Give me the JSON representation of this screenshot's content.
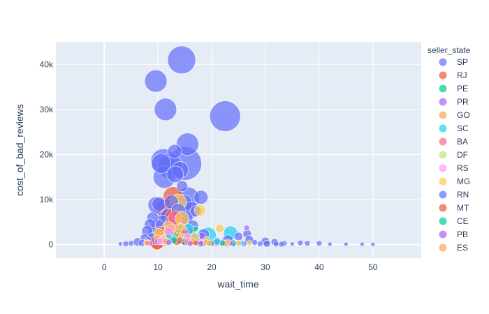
{
  "chart_data": {
    "type": "scatter",
    "xlabel": "wait_time",
    "ylabel": "cost_of_bad_reviews",
    "xlim": [
      -9,
      59
    ],
    "ylim": [
      -3000,
      45000
    ],
    "x_ticks": [
      0,
      10,
      20,
      30,
      40,
      50
    ],
    "x_tick_labels": [
      "0",
      "10",
      "20",
      "30",
      "40",
      "50"
    ],
    "y_ticks": [
      0,
      10000,
      20000,
      30000,
      40000
    ],
    "y_tick_labels": [
      "0",
      "10k",
      "20k",
      "30k",
      "40k"
    ],
    "grid": true,
    "legend_title": "seller_state",
    "legend_position": "right",
    "series": [
      {
        "name": "SP",
        "color": "#636efa",
        "points": [
          [
            14.4,
            41000,
            20
          ],
          [
            9.6,
            36300,
            16
          ],
          [
            11.4,
            30000,
            16
          ],
          [
            22.5,
            28500,
            22
          ],
          [
            15.5,
            22300,
            16
          ],
          [
            13.1,
            20700,
            10
          ],
          [
            11.0,
            18500,
            18
          ],
          [
            10.6,
            18000,
            14
          ],
          [
            12.2,
            17500,
            18
          ],
          [
            15.0,
            18000,
            24
          ],
          [
            14.1,
            16600,
            12
          ],
          [
            13.2,
            15600,
            12
          ],
          [
            11.2,
            15000,
            16
          ],
          [
            14.5,
            13000,
            8
          ],
          [
            15.6,
            10300,
            16
          ],
          [
            18.0,
            10500,
            10
          ],
          [
            10.2,
            9000,
            10
          ],
          [
            9.7,
            8800,
            12
          ],
          [
            12.5,
            9500,
            10
          ],
          [
            14.8,
            9200,
            12
          ],
          [
            11.0,
            7800,
            14
          ],
          [
            13.8,
            7600,
            10
          ],
          [
            16.2,
            7700,
            12
          ],
          [
            17.0,
            7400,
            8
          ],
          [
            9.0,
            6000,
            8
          ],
          [
            12.0,
            6200,
            12
          ],
          [
            15.2,
            6000,
            10
          ],
          [
            10.8,
            5000,
            10
          ],
          [
            14.0,
            4500,
            12
          ],
          [
            16.5,
            4200,
            8
          ],
          [
            8.5,
            4500,
            8
          ],
          [
            10.0,
            4000,
            10
          ],
          [
            12.2,
            3500,
            12
          ],
          [
            13.6,
            3200,
            10
          ],
          [
            11.5,
            2800,
            8
          ],
          [
            9.2,
            2500,
            8
          ],
          [
            8.0,
            3000,
            8
          ],
          [
            14.8,
            2500,
            8
          ],
          [
            16.0,
            2000,
            8
          ],
          [
            18.5,
            2300,
            8
          ],
          [
            7.5,
            1500,
            6
          ],
          [
            9.0,
            1400,
            8
          ],
          [
            10.5,
            1200,
            8
          ],
          [
            12.0,
            1500,
            10
          ],
          [
            13.5,
            1300,
            8
          ],
          [
            15.0,
            1100,
            8
          ],
          [
            17.0,
            900,
            6
          ],
          [
            19.0,
            1000,
            6
          ],
          [
            21.0,
            700,
            6
          ],
          [
            23.0,
            900,
            8
          ],
          [
            25.0,
            1800,
            6
          ],
          [
            26.6,
            2400,
            6
          ],
          [
            27.0,
            1100,
            6
          ],
          [
            28.0,
            500,
            4
          ],
          [
            30.0,
            700,
            6
          ],
          [
            31.7,
            600,
            5
          ],
          [
            33.5,
            300,
            4
          ],
          [
            36.5,
            400,
            4
          ],
          [
            37.8,
            300,
            4
          ],
          [
            40.0,
            300,
            4
          ],
          [
            6.2,
            600,
            6
          ],
          [
            5.0,
            300,
            4
          ],
          [
            4.0,
            200,
            4
          ],
          [
            3.0,
            150,
            3
          ],
          [
            7.0,
            400,
            5
          ],
          [
            8.2,
            800,
            6
          ],
          [
            18.0,
            400,
            6
          ],
          [
            20.0,
            300,
            5
          ],
          [
            22.0,
            400,
            5
          ],
          [
            24.0,
            300,
            5
          ],
          [
            26.0,
            250,
            4
          ],
          [
            29.0,
            200,
            4
          ],
          [
            32.0,
            150,
            4
          ],
          [
            35.0,
            150,
            3
          ],
          [
            42.0,
            120,
            3
          ],
          [
            45.0,
            100,
            3
          ],
          [
            48.0,
            100,
            3
          ],
          [
            50.0,
            80,
            3
          ],
          [
            30.3,
            200,
            5
          ],
          [
            33.0,
            120,
            4
          ]
        ]
      },
      {
        "name": "RJ",
        "color": "#ef553b",
        "points": [
          [
            12.8,
            10700,
            14
          ],
          [
            11.5,
            8000,
            14
          ],
          [
            13.0,
            6200,
            12
          ],
          [
            12.6,
            4800,
            10
          ],
          [
            10.5,
            2800,
            8
          ],
          [
            14.0,
            2400,
            8
          ],
          [
            11.0,
            1500,
            8
          ],
          [
            9.5,
            900,
            6
          ],
          [
            13.5,
            800,
            6
          ],
          [
            16.0,
            600,
            6
          ],
          [
            18.5,
            500,
            5
          ],
          [
            20.5,
            400,
            5
          ],
          [
            8.0,
            300,
            4
          ],
          [
            22.5,
            300,
            4
          ],
          [
            25.0,
            250,
            4
          ],
          [
            10.0,
            250,
            9
          ]
        ]
      },
      {
        "name": "PE",
        "color": "#00cc96",
        "points": [
          [
            13.5,
            2200,
            8
          ],
          [
            17.0,
            3500,
            4
          ],
          [
            15.0,
            800,
            6
          ],
          [
            19.5,
            600,
            5
          ],
          [
            11.5,
            500,
            5
          ],
          [
            22.0,
            300,
            4
          ],
          [
            24.0,
            200,
            4
          ]
        ]
      },
      {
        "name": "PR",
        "color": "#ab63fa",
        "points": [
          [
            14.0,
            5000,
            14
          ],
          [
            12.5,
            4200,
            10
          ],
          [
            26.5,
            3700,
            4
          ],
          [
            16.0,
            2700,
            8
          ],
          [
            18.2,
            1800,
            6
          ],
          [
            11.0,
            1200,
            6
          ],
          [
            10.0,
            700,
            5
          ],
          [
            21.0,
            500,
            5
          ],
          [
            23.5,
            400,
            4
          ],
          [
            8.5,
            300,
            4
          ]
        ]
      },
      {
        "name": "GO",
        "color": "#ffa15a",
        "points": [
          [
            12.2,
            3200,
            8
          ],
          [
            14.0,
            1800,
            6
          ],
          [
            10.0,
            1200,
            6
          ],
          [
            16.5,
            700,
            5
          ],
          [
            19.0,
            500,
            4
          ],
          [
            8.0,
            400,
            4
          ]
        ]
      },
      {
        "name": "SC",
        "color": "#19d3f3",
        "points": [
          [
            23.5,
            2600,
            10
          ],
          [
            19.3,
            2000,
            12
          ],
          [
            15.6,
            3400,
            8
          ],
          [
            17.0,
            1800,
            6
          ],
          [
            12.0,
            1400,
            6
          ],
          [
            21.0,
            700,
            5
          ],
          [
            25.5,
            400,
            4
          ]
        ]
      },
      {
        "name": "BA",
        "color": "#ff6692",
        "points": [
          [
            13.2,
            6000,
            10
          ],
          [
            15.0,
            2500,
            6
          ],
          [
            11.0,
            900,
            5
          ],
          [
            17.5,
            700,
            4
          ]
        ]
      },
      {
        "name": "DF",
        "color": "#b6e880",
        "points": [
          [
            14.5,
            1500,
            6
          ],
          [
            11.5,
            700,
            5
          ],
          [
            18.0,
            400,
            4
          ]
        ]
      },
      {
        "name": "RS",
        "color": "#ff97ff",
        "points": [
          [
            13.5,
            4200,
            12
          ],
          [
            12.0,
            2600,
            8
          ],
          [
            15.5,
            1600,
            6
          ],
          [
            10.5,
            800,
            5
          ],
          [
            18.0,
            500,
            4
          ],
          [
            20.0,
            300,
            4
          ]
        ]
      },
      {
        "name": "MG",
        "color": "#fecb52",
        "points": [
          [
            13.8,
            9400,
            12
          ],
          [
            17.8,
            7600,
            8
          ],
          [
            14.5,
            5800,
            10
          ],
          [
            12.0,
            3600,
            10
          ],
          [
            14.2,
            3500,
            8
          ],
          [
            21.5,
            3600,
            6
          ],
          [
            10.2,
            2400,
            8
          ],
          [
            16.8,
            1700,
            6
          ],
          [
            11.0,
            1100,
            6
          ],
          [
            19.0,
            900,
            5
          ],
          [
            23.0,
            600,
            4
          ],
          [
            25.0,
            400,
            4
          ],
          [
            27.0,
            300,
            4
          ],
          [
            8.0,
            500,
            5
          ]
        ]
      },
      {
        "name": "RN",
        "color": "#636efa",
        "points": [
          [
            15.0,
            600,
            5
          ],
          [
            18.0,
            300,
            4
          ]
        ]
      },
      {
        "name": "MT",
        "color": "#ef553b",
        "points": [
          [
            14.0,
            900,
            5
          ],
          [
            17.0,
            400,
            4
          ],
          [
            9.8,
            250,
            9
          ]
        ]
      },
      {
        "name": "CE",
        "color": "#00cc96",
        "points": [
          [
            13.0,
            1000,
            5
          ],
          [
            20.0,
            300,
            4
          ]
        ]
      },
      {
        "name": "PB",
        "color": "#ab63fa",
        "points": [
          [
            12.0,
            500,
            4
          ],
          [
            16.0,
            300,
            4
          ]
        ]
      },
      {
        "name": "ES",
        "color": "#ffa15a",
        "points": [
          [
            11.5,
            700,
            5
          ],
          [
            15.5,
            600,
            5
          ],
          [
            19.5,
            300,
            4
          ]
        ]
      }
    ]
  }
}
